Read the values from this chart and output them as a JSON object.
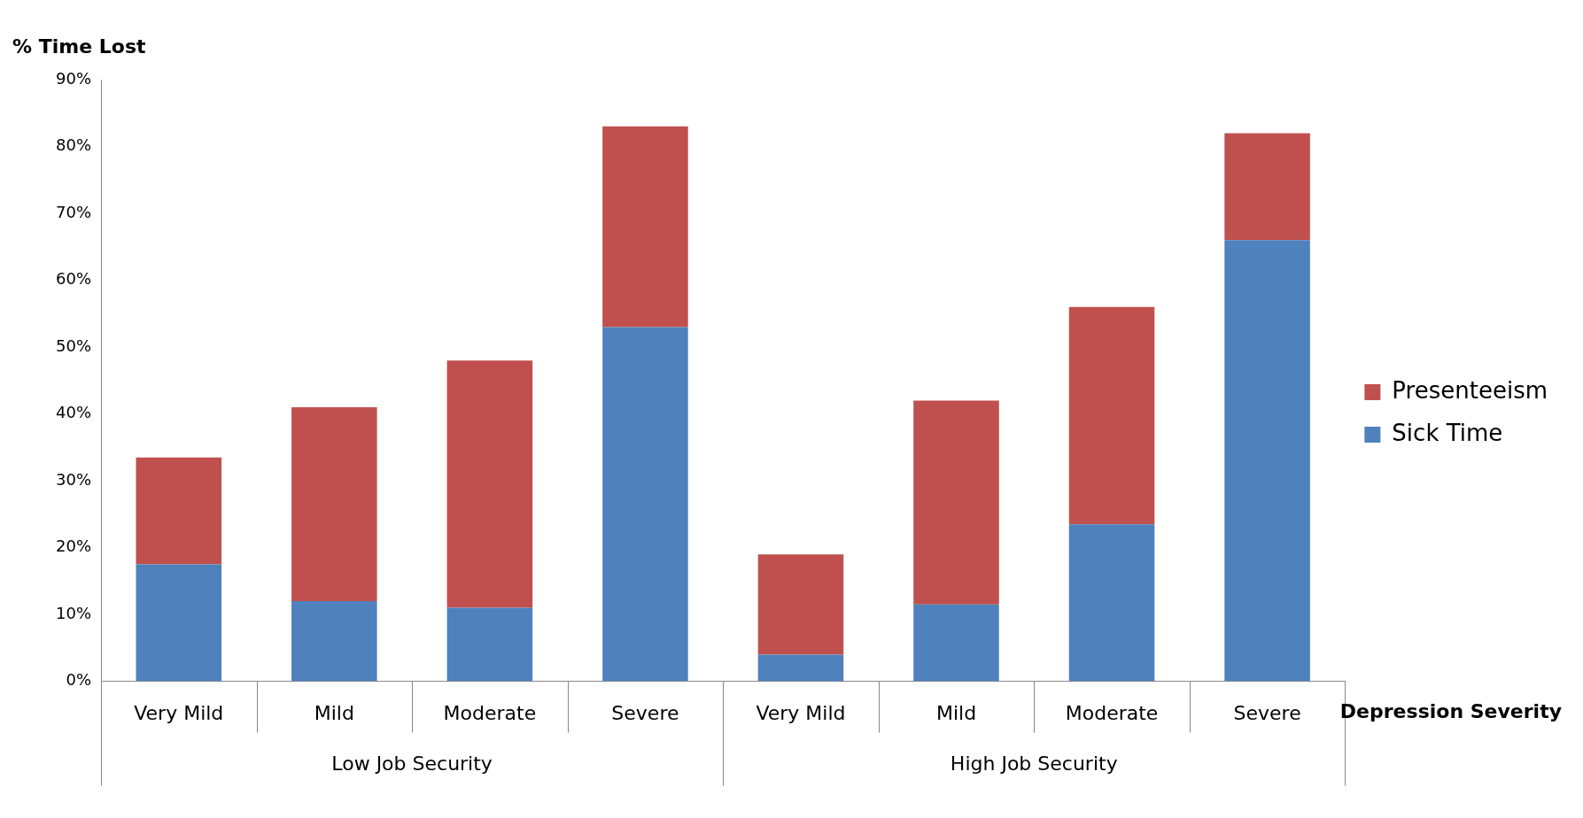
{
  "chart_data": {
    "type": "bar",
    "stacked": true,
    "ylabel": "% Time Lost",
    "xlabel": "Depression Severity",
    "categories": [
      "Very Mild",
      "Mild",
      "Moderate",
      "Severe",
      "Very Mild",
      "Mild",
      "Moderate",
      "Severe"
    ],
    "series": [
      {
        "name": "Sick Time",
        "color": "#4f81bd",
        "values": [
          17.5,
          12,
          11,
          53,
          4,
          11.5,
          23.5,
          66
        ]
      },
      {
        "name": "Presenteeism",
        "color": "#c0504d",
        "values": [
          16,
          29,
          37,
          30,
          15,
          30.5,
          32.5,
          16
        ]
      }
    ],
    "annotations": [
      "Low Job Security",
      "High Job Security"
    ],
    "ylim": [
      0,
      90
    ],
    "yticks": [
      {
        "value": 0,
        "label": "0%"
      },
      {
        "value": 10,
        "label": "10%"
      },
      {
        "value": 20,
        "label": "20%"
      },
      {
        "value": 30,
        "label": "30%"
      },
      {
        "value": 40,
        "label": "40%"
      },
      {
        "value": 50,
        "label": "50%"
      },
      {
        "value": 60,
        "label": "60%"
      },
      {
        "value": 70,
        "label": "70%"
      },
      {
        "value": 80,
        "label": "80%"
      },
      {
        "value": 90,
        "label": "90%"
      }
    ],
    "grid": false,
    "legend": "right"
  }
}
